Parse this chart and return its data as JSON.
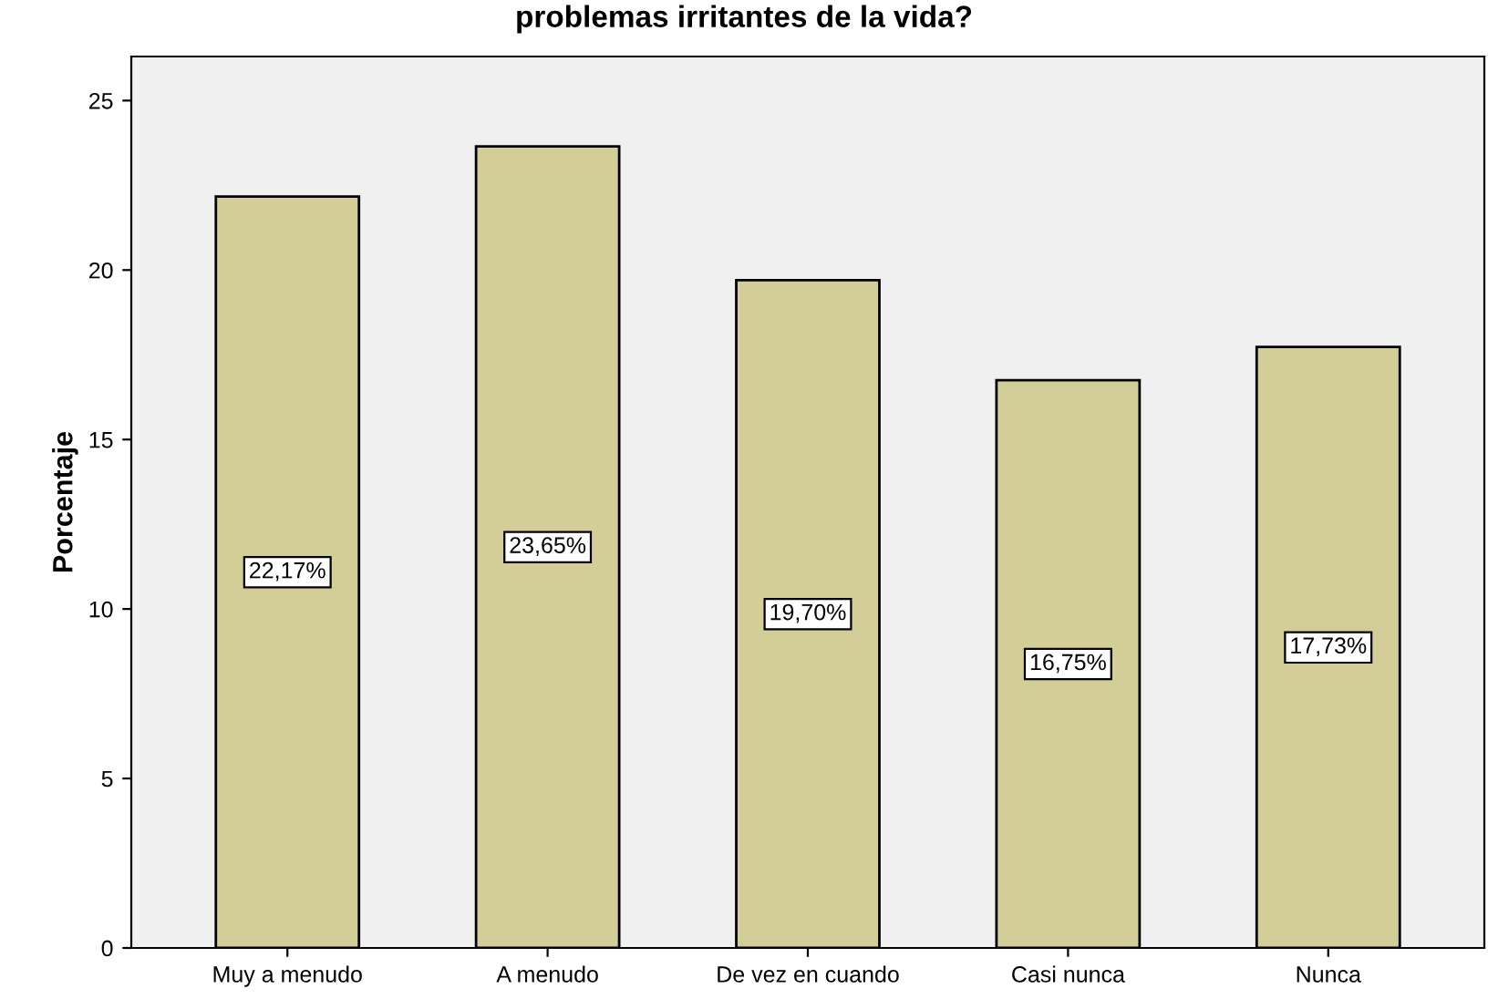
{
  "chart_data": {
    "type": "bar",
    "title": "problemas irritantes de la vida?",
    "ylabel": "Porcentaje",
    "categories": [
      "Muy a menudo",
      "A menudo",
      "De vez en cuando",
      "Casi nunca",
      "Nunca"
    ],
    "values": [
      22.17,
      23.65,
      19.7,
      16.75,
      17.73
    ],
    "value_labels": [
      "22,17%",
      "23,65%",
      "19,70%",
      "16,75%",
      "17,73%"
    ],
    "color": "#d3ce98",
    "ylim": [
      0,
      26.3
    ],
    "yticks": [
      0,
      5,
      10,
      15,
      20,
      25
    ],
    "grid": false,
    "legend": false
  }
}
